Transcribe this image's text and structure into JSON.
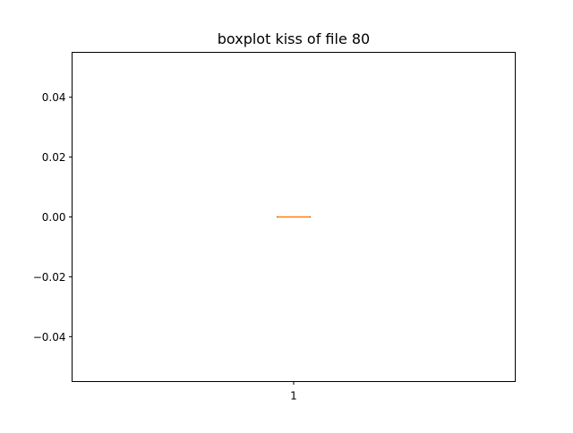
{
  "chart_data": {
    "type": "boxplot",
    "title": "boxplot kiss of file 80",
    "xlabel": "",
    "ylabel": "",
    "categories": [
      "1"
    ],
    "series": [
      {
        "values": {
          "min": 0.0,
          "q1": 0.0,
          "median": 0.0,
          "q3": 0.0,
          "max": 0.0
        }
      }
    ],
    "ylim": [
      -0.055,
      0.055
    ],
    "yticks": [
      -0.04,
      -0.02,
      0.0,
      0.02,
      0.04
    ],
    "ytick_labels": [
      "−0.04",
      "−0.02",
      "0.00",
      "0.02",
      "0.04"
    ],
    "grid": false,
    "colors": {
      "box": "#000000",
      "median": "#ff7f0e",
      "axes": "#000000"
    }
  }
}
